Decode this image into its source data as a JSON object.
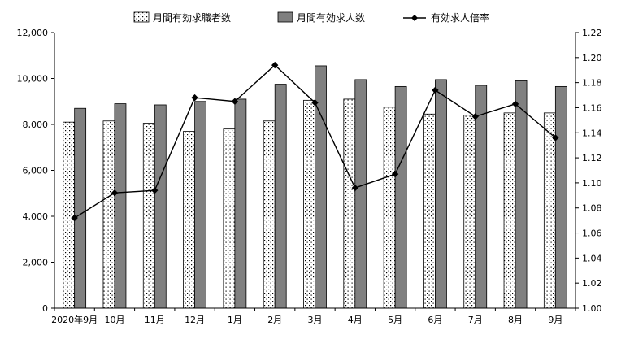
{
  "chart_data": {
    "type": "bar",
    "categories": [
      "2020年9月",
      "10月",
      "11月",
      "12月",
      "1月",
      "2月",
      "3月",
      "4月",
      "5月",
      "6月",
      "7月",
      "8月",
      "9月"
    ],
    "series": [
      {
        "name": "月間有効求職者数",
        "kind": "bar",
        "axis": "left",
        "pattern": "dotted",
        "color": "#ffffff",
        "values": [
          8100,
          8150,
          8050,
          7700,
          7800,
          8150,
          9050,
          9100,
          8750,
          8450,
          8400,
          8500,
          8500
        ]
      },
      {
        "name": "月間有効求人数",
        "kind": "bar",
        "axis": "left",
        "color": "#808080",
        "values": [
          8700,
          8900,
          8850,
          9000,
          9100,
          9750,
          10550,
          9950,
          9650,
          9950,
          9700,
          9900,
          9650
        ]
      },
      {
        "name": "有効求人倍率",
        "kind": "line",
        "axis": "right",
        "marker": "diamond",
        "color": "#000000",
        "values": [
          1.072,
          1.092,
          1.094,
          1.168,
          1.165,
          1.194,
          1.164,
          1.096,
          1.107,
          1.174,
          1.153,
          1.163,
          1.136
        ]
      }
    ],
    "left_axis": {
      "min": 0,
      "max": 12000,
      "ticks": [
        "0",
        "2,000",
        "4,000",
        "6,000",
        "8,000",
        "10,000",
        "12,000"
      ]
    },
    "right_axis": {
      "min": 1.0,
      "max": 1.22,
      "ticks": [
        "1.00",
        "1.02",
        "1.04",
        "1.06",
        "1.08",
        "1.10",
        "1.12",
        "1.14",
        "1.16",
        "1.18",
        "1.20",
        "1.22"
      ]
    },
    "legend_position": "top",
    "grid": false
  }
}
